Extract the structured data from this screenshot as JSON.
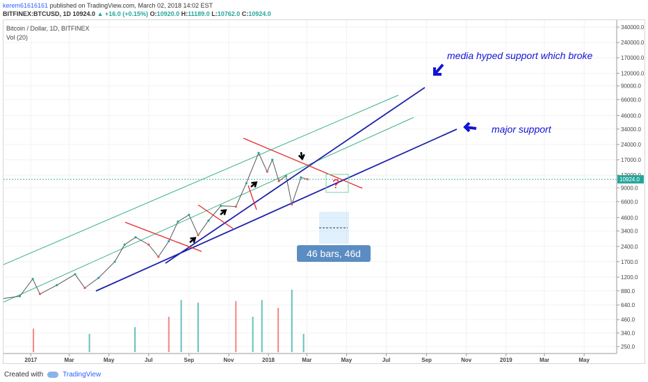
{
  "header": {
    "author": "kerem61616161",
    "published_text": "published on TradingView.com, March 02, 2018 14:02 EST",
    "symbol": "BITFINEX:BTCUSD, 1D",
    "last": "10924.0",
    "change": "▲ +16.0 (+0.15%)",
    "o_label": "O:",
    "o_value": "10920.0",
    "h_label": "H:",
    "h_value": "11189.0",
    "l_label": "L:",
    "l_value": "10762.0",
    "c_label": "C:",
    "c_value": "10924.0"
  },
  "legend": {
    "instrument": "Bitcoin / Dollar, 1D, BITFINEX",
    "volume": "Vol (20)"
  },
  "footer": {
    "created_with": "Created with",
    "brand": "TradingView"
  },
  "colors": {
    "candle_up": "#26a69a",
    "candle_down": "#ef5350",
    "channel": "#3cb089",
    "support_line": "#1e22aa",
    "resistance": "#e8262c",
    "annotation_text": "#1313d6",
    "range_box": "#bbdefb",
    "label_box": "#5b8cc2"
  },
  "chart_data": {
    "type": "line",
    "title": "Bitcoin / Dollar, 1D, BITFINEX",
    "xlabel": "",
    "ylabel": "",
    "y_scale": "log",
    "ylim": [
      250,
      340000
    ],
    "xlim": [
      "2016-11-20",
      "2019-06-20"
    ],
    "x_ticks": [
      {
        "label": "2017",
        "date": "2017-01-01"
      },
      {
        "label": "Mar",
        "date": "2017-03-01"
      },
      {
        "label": "May",
        "date": "2017-05-01"
      },
      {
        "label": "Jul",
        "date": "2017-07-01"
      },
      {
        "label": "Sep",
        "date": "2017-09-01"
      },
      {
        "label": "Nov",
        "date": "2017-11-01"
      },
      {
        "label": "2018",
        "date": "2018-01-01"
      },
      {
        "label": "Mar",
        "date": "2018-03-01"
      },
      {
        "label": "May",
        "date": "2018-05-01"
      },
      {
        "label": "Jul",
        "date": "2018-07-01"
      },
      {
        "label": "Sep",
        "date": "2018-09-01"
      },
      {
        "label": "Nov",
        "date": "2018-11-01"
      },
      {
        "label": "2019",
        "date": "2019-01-01"
      },
      {
        "label": "Mar",
        "date": "2019-03-01"
      },
      {
        "label": "May",
        "date": "2019-05-01"
      }
    ],
    "y_ticks": [
      "340000.0",
      "240000.0",
      "170000.0",
      "120000.0",
      "90000.0",
      "66000.0",
      "46000.0",
      "34000.0",
      "24000.0",
      "17000.0",
      "12000.0",
      "9000.0",
      "6600.0",
      "4600.0",
      "3400.0",
      "2400.0",
      "1700.0",
      "1200.0",
      "880.0",
      "640.0",
      "460.0",
      "340.0",
      "250.0"
    ],
    "last_price_label": "10924.0",
    "series": [
      {
        "values": [
          {
            "x": "2016-11-20",
            "y": 740
          },
          {
            "x": "2016-12-15",
            "y": 780
          },
          {
            "x": "2017-01-04",
            "y": 1150
          },
          {
            "x": "2017-01-15",
            "y": 820
          },
          {
            "x": "2017-02-10",
            "y": 1000
          },
          {
            "x": "2017-03-10",
            "y": 1280
          },
          {
            "x": "2017-03-25",
            "y": 940
          },
          {
            "x": "2017-04-15",
            "y": 1180
          },
          {
            "x": "2017-05-10",
            "y": 1700
          },
          {
            "x": "2017-05-25",
            "y": 2500
          },
          {
            "x": "2017-06-11",
            "y": 2950
          },
          {
            "x": "2017-07-01",
            "y": 2500
          },
          {
            "x": "2017-07-16",
            "y": 1900
          },
          {
            "x": "2017-08-01",
            "y": 2700
          },
          {
            "x": "2017-08-15",
            "y": 4200
          },
          {
            "x": "2017-09-01",
            "y": 4900
          },
          {
            "x": "2017-09-15",
            "y": 3100
          },
          {
            "x": "2017-10-01",
            "y": 4300
          },
          {
            "x": "2017-10-20",
            "y": 6000
          },
          {
            "x": "2017-11-12",
            "y": 5900
          },
          {
            "x": "2017-11-28",
            "y": 10000
          },
          {
            "x": "2017-12-17",
            "y": 19800
          },
          {
            "x": "2017-12-30",
            "y": 13000
          },
          {
            "x": "2018-01-07",
            "y": 17000
          },
          {
            "x": "2018-01-17",
            "y": 10500
          },
          {
            "x": "2018-01-28",
            "y": 11800
          },
          {
            "x": "2018-02-06",
            "y": 6200
          },
          {
            "x": "2018-02-20",
            "y": 11400
          },
          {
            "x": "2018-03-02",
            "y": 10924
          }
        ]
      }
    ],
    "volume_series": [
      {
        "date": "2017-01-05",
        "volume": 45
      },
      {
        "date": "2017-04-01",
        "volume": 35
      },
      {
        "date": "2017-06-10",
        "volume": 48
      },
      {
        "date": "2017-08-01",
        "volume": 68
      },
      {
        "date": "2017-08-20",
        "volume": 100
      },
      {
        "date": "2017-09-15",
        "volume": 95
      },
      {
        "date": "2017-11-12",
        "volume": 98
      },
      {
        "date": "2017-12-08",
        "volume": 68
      },
      {
        "date": "2017-12-22",
        "volume": 100
      },
      {
        "date": "2018-01-16",
        "volume": 85
      },
      {
        "date": "2018-02-06",
        "volume": 120
      },
      {
        "date": "2018-02-24",
        "volume": 35
      }
    ],
    "annotations": [
      {
        "kind": "text",
        "text": "media hyped support which broke"
      },
      {
        "kind": "text",
        "text": "major support"
      },
      {
        "kind": "text",
        "text": "?"
      },
      {
        "kind": "range",
        "text": "46 bars, 46d"
      }
    ]
  }
}
